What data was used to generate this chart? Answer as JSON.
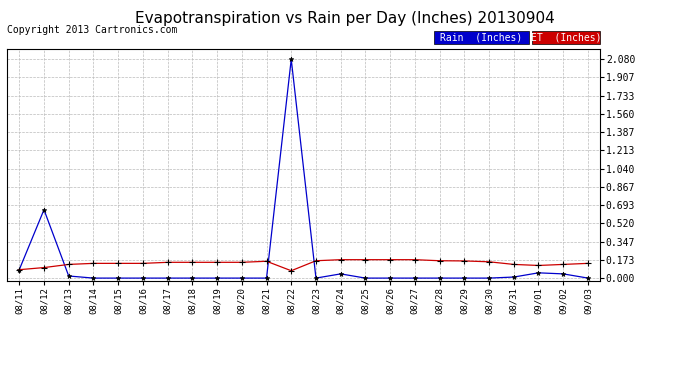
{
  "title": "Evapotranspiration vs Rain per Day (Inches) 20130904",
  "copyright": "Copyright 2013 Cartronics.com",
  "legend_rain_label": "Rain  (Inches)",
  "legend_et_label": "ET  (Inches)",
  "legend_rain_color": "#0000cc",
  "legend_et_color": "#cc0000",
  "background_color": "#ffffff",
  "title_fontsize": 11,
  "grid_color": "#bbbbbb",
  "xlabels": [
    "08/11",
    "08/12",
    "08/13",
    "08/14",
    "08/15",
    "08/16",
    "08/17",
    "08/18",
    "08/19",
    "08/20",
    "08/21",
    "08/22",
    "08/23",
    "08/24",
    "08/25",
    "08/26",
    "08/27",
    "08/28",
    "08/29",
    "08/30",
    "08/31",
    "09/01",
    "09/02",
    "09/03"
  ],
  "rain_values": [
    0.08,
    0.65,
    0.02,
    0.0,
    0.0,
    0.0,
    0.0,
    0.0,
    0.0,
    0.0,
    0.0,
    2.08,
    0.0,
    0.04,
    0.0,
    0.0,
    0.0,
    0.0,
    0.0,
    0.0,
    0.01,
    0.05,
    0.04,
    0.0
  ],
  "et_values": [
    0.08,
    0.1,
    0.13,
    0.14,
    0.14,
    0.14,
    0.15,
    0.15,
    0.15,
    0.15,
    0.16,
    0.07,
    0.165,
    0.175,
    0.175,
    0.175,
    0.175,
    0.165,
    0.163,
    0.155,
    0.13,
    0.12,
    0.13,
    0.14
  ],
  "yticks": [
    0.0,
    0.173,
    0.347,
    0.52,
    0.693,
    0.867,
    1.04,
    1.213,
    1.387,
    1.56,
    1.733,
    1.907,
    2.08
  ],
  "ylim_min": -0.03,
  "ylim_max": 2.18,
  "rain_line_color": "#0000cc",
  "et_line_color": "#cc0000"
}
